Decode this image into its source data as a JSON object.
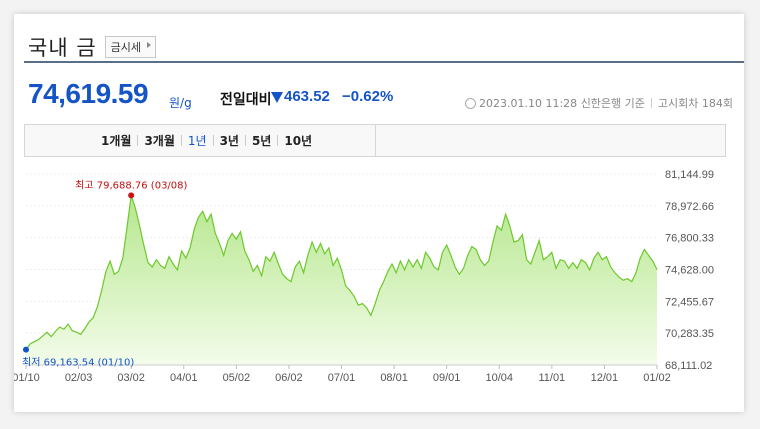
{
  "header": {
    "title": "국내 금",
    "badge_label": "금시세"
  },
  "price": {
    "value": "74,619.59",
    "unit": "원/g",
    "compare_label": "전일대비",
    "change": "463.52",
    "change_pct": "−0.62%",
    "direction": "down",
    "timestamp": "2023.01.10 11:28",
    "source": "신한은행 기준",
    "round": "고시회차 184회"
  },
  "tabs": [
    {
      "label": "1개월",
      "active": false
    },
    {
      "label": "3개월",
      "active": false
    },
    {
      "label": "1년",
      "active": true
    },
    {
      "label": "3년",
      "active": false
    },
    {
      "label": "5년",
      "active": false
    },
    {
      "label": "10년",
      "active": false
    }
  ],
  "colors": {
    "accent": "#1454c6",
    "high": "#c01010",
    "line": "#6cc92a",
    "fill": "#d4f2b6"
  },
  "chart_data": {
    "type": "area",
    "y_ticks": [
      "81,144.99",
      "78,972.66",
      "76,800.33",
      "74,628.00",
      "72,455.67",
      "70,283.35",
      "68,111.02"
    ],
    "x_ticks": [
      "01/10",
      "02/03",
      "03/02",
      "04/01",
      "05/02",
      "06/02",
      "07/01",
      "08/01",
      "09/01",
      "10/04",
      "11/01",
      "12/01",
      "01/02"
    ],
    "ylim": [
      68111.02,
      81144.99
    ],
    "high": {
      "label": "최고 79,688.76 (03/08)",
      "value": 79688.76
    },
    "low": {
      "label": "최저 69,163.54 (01/10)",
      "value": 69163.54
    },
    "values": [
      69163.54,
      69550,
      69700,
      69850,
      70100,
      70350,
      70050,
      70400,
      70700,
      70550,
      70900,
      70450,
      70350,
      70200,
      70600,
      71050,
      71350,
      72100,
      73200,
      74500,
      75200,
      74300,
      74500,
      75400,
      77500,
      79688.76,
      78800,
      77600,
      76300,
      75100,
      74800,
      75300,
      74900,
      74700,
      75500,
      75000,
      74600,
      75900,
      75400,
      76100,
      77400,
      78200,
      78600,
      77900,
      78400,
      77100,
      76400,
      75600,
      76600,
      77100,
      76700,
      77200,
      75900,
      75300,
      74500,
      74900,
      74200,
      75500,
      75200,
      75800,
      75000,
      74300,
      74000,
      73800,
      74800,
      75200,
      74400,
      75600,
      76500,
      75800,
      76400,
      75700,
      76100,
      74900,
      75400,
      74600,
      73500,
      73200,
      72800,
      72200,
      72300,
      72000,
      71500,
      72300,
      73200,
      73800,
      74500,
      75000,
      74400,
      75200,
      74600,
      75300,
      74800,
      75300,
      74700,
      75800,
      75400,
      74800,
      74600,
      75800,
      76300,
      75600,
      74800,
      74300,
      74700,
      75600,
      76200,
      76000,
      75300,
      74900,
      75200,
      76500,
      77600,
      77300,
      78400,
      77600,
      76500,
      76600,
      77000,
      75300,
      75000,
      75800,
      76600,
      75300,
      75500,
      75800,
      74700,
      75300,
      75200,
      74700,
      75100,
      74700,
      75300,
      75100,
      74600,
      75400,
      75800,
      75300,
      75500,
      74800,
      74400,
      74100,
      73900,
      74000,
      73800,
      74400,
      75400,
      76000,
      75600,
      75200,
      74619.59
    ]
  }
}
